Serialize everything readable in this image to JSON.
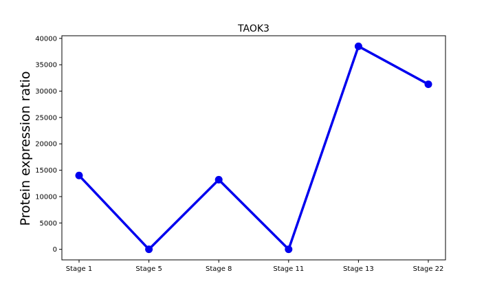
{
  "chart_data": {
    "type": "line",
    "title": "TAOK3",
    "xlabel": "",
    "ylabel": "Protein expression ratio",
    "categories": [
      "Stage 1",
      "Stage 5",
      "Stage 8",
      "Stage 11",
      "Stage 13",
      "Stage 22"
    ],
    "values": [
      14000,
      0,
      13200,
      0,
      38500,
      31300
    ],
    "ylim": [
      -2000,
      40500
    ],
    "yticks": [
      0,
      5000,
      10000,
      15000,
      20000,
      25000,
      30000,
      35000,
      40000
    ],
    "ytick_labels": [
      "0",
      "5000",
      "10000",
      "15000",
      "20000",
      "25000",
      "30000",
      "35000",
      "40000"
    ],
    "grid": false,
    "legend": "none",
    "line_color": "#0000ee",
    "marker": "circle"
  }
}
